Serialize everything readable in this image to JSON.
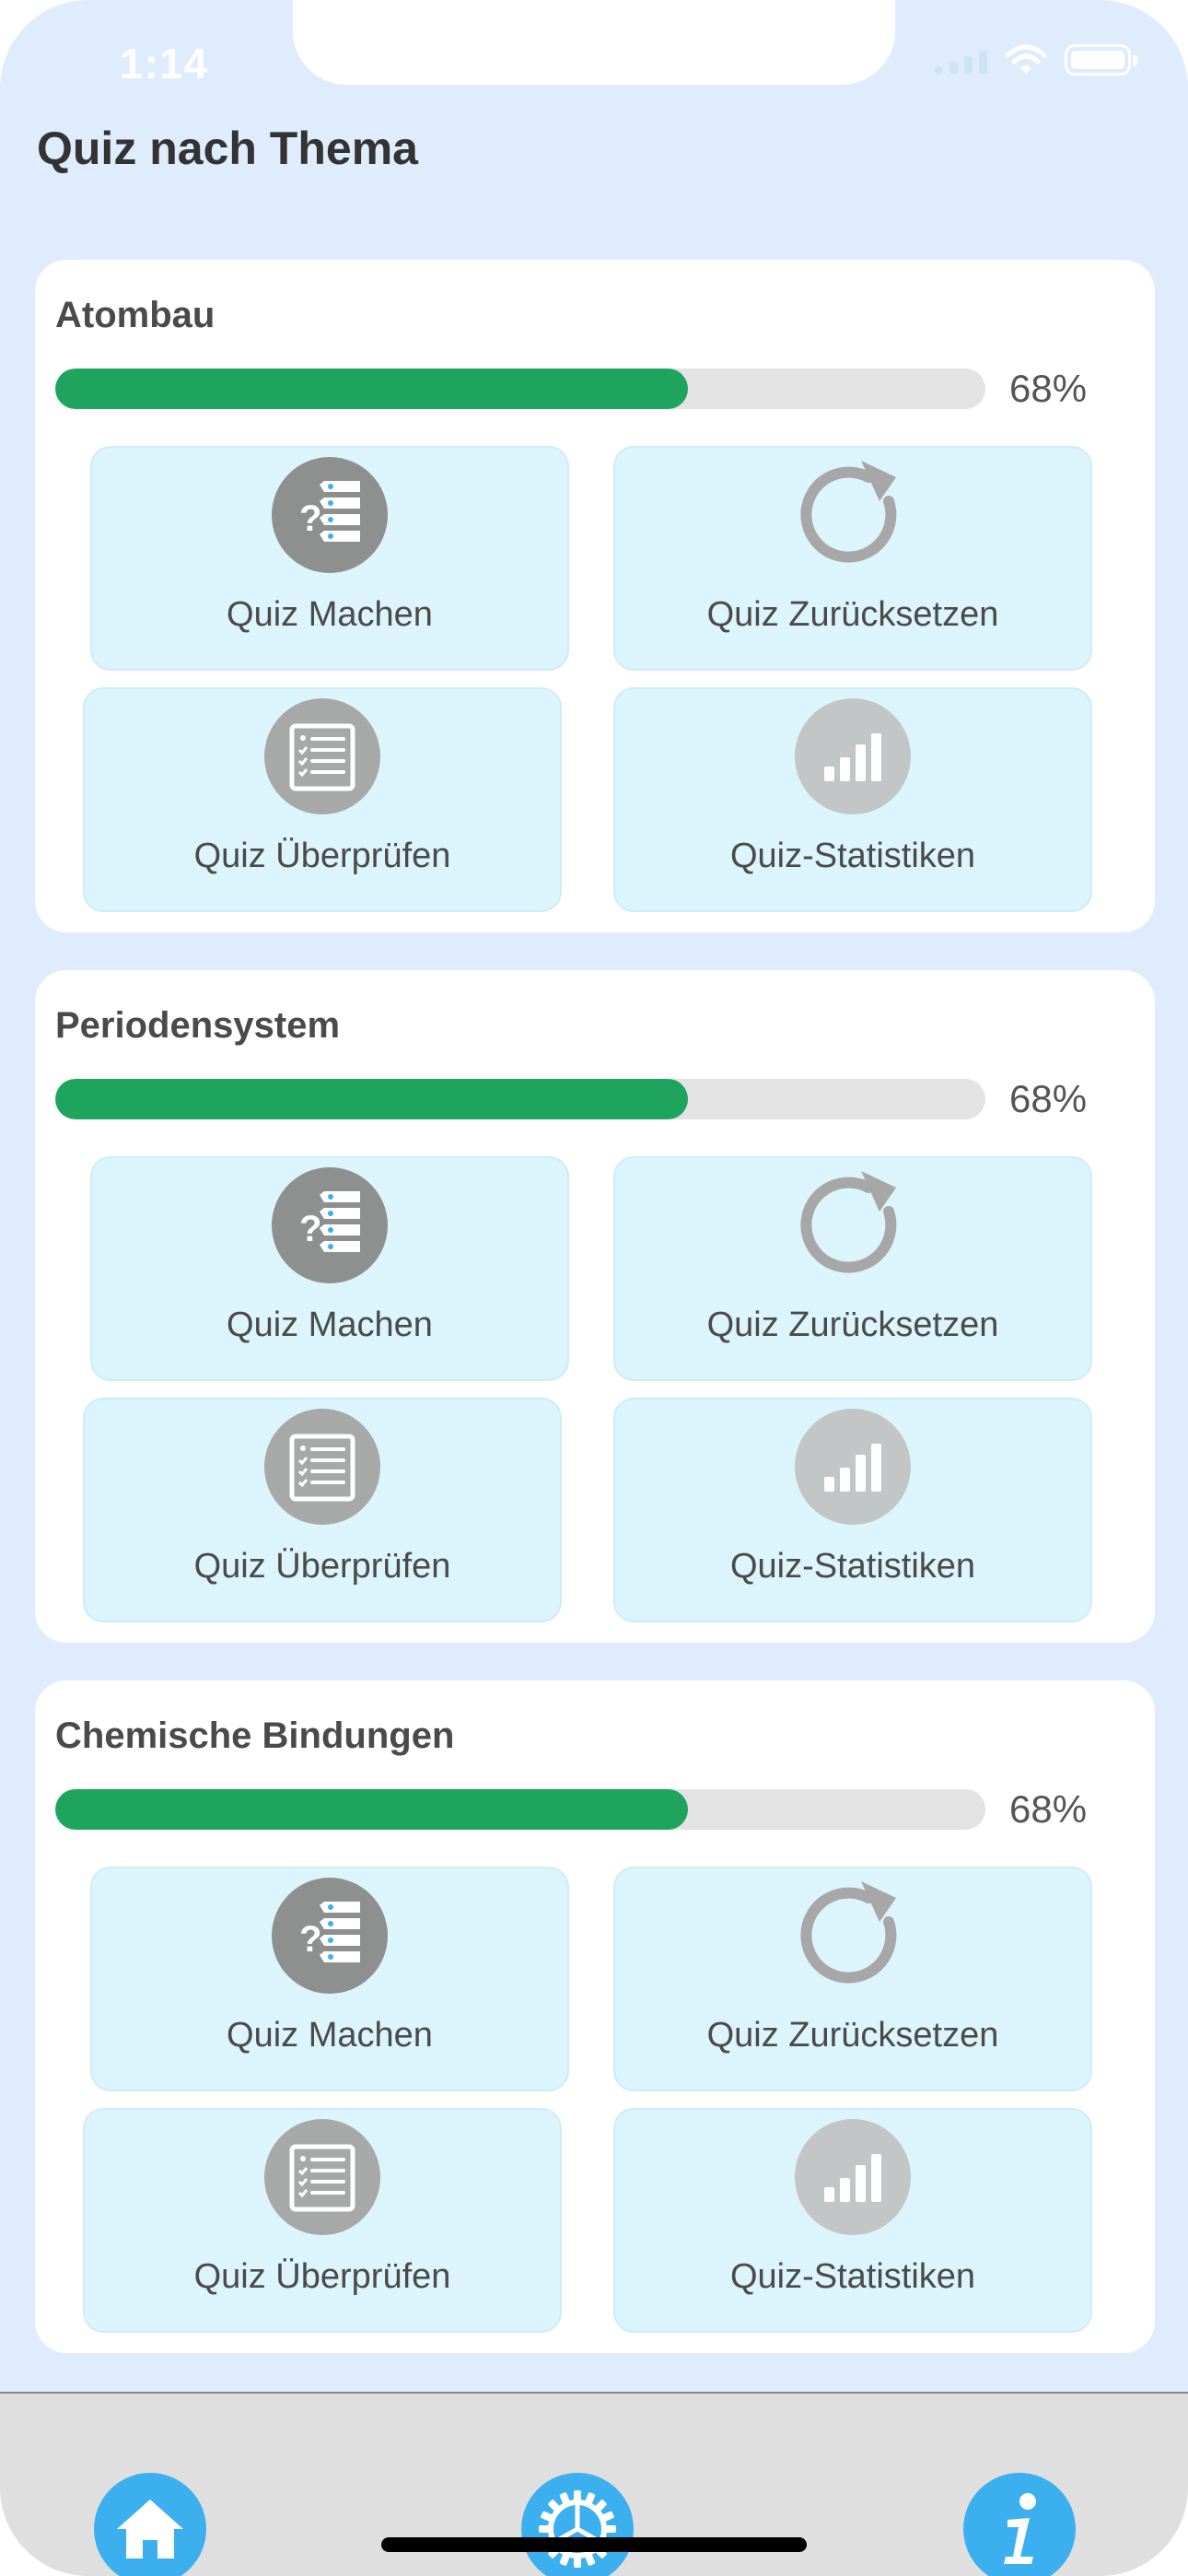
{
  "status_bar": {
    "time": "1:14"
  },
  "header": {
    "title": "Quiz nach Thema"
  },
  "topics": [
    {
      "title": "Atombau",
      "progress": 68,
      "progress_label": "68%",
      "actions": {
        "take": "Quiz Machen",
        "reset": "Quiz Zurücksetzen",
        "review": "Quiz Überprüfen",
        "stats": "Quiz-Statistiken"
      }
    },
    {
      "title": "Periodensystem",
      "progress": 68,
      "progress_label": "68%",
      "actions": {
        "take": "Quiz Machen",
        "reset": "Quiz Zurücksetzen",
        "review": "Quiz Überprüfen",
        "stats": "Quiz-Statistiken"
      }
    },
    {
      "title": "Chemische Bindungen",
      "progress": 68,
      "progress_label": "68%",
      "actions": {
        "take": "Quiz Machen",
        "reset": "Quiz Zurücksetzen",
        "review": "Quiz Überprüfen",
        "stats": "Quiz-Statistiken"
      }
    }
  ],
  "tabbar": {
    "items": [
      {
        "icon": "home-icon"
      },
      {
        "icon": "settings-wheel-icon"
      },
      {
        "icon": "info-icon"
      }
    ]
  },
  "colors": {
    "background": "#deecfd",
    "progress_fill": "#1fa45e",
    "progress_track": "#e3e3e3",
    "tile": "#dcf4fc",
    "tab_button": "#3cb0ef"
  }
}
